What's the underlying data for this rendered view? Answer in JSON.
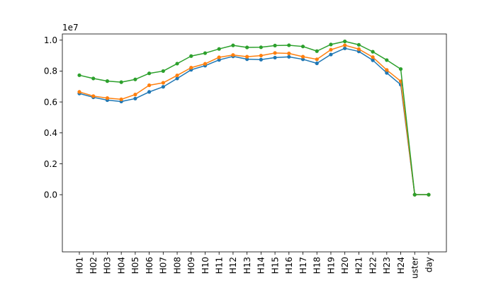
{
  "chart_data": {
    "type": "line",
    "title": "",
    "xlabel": "",
    "ylabel": "",
    "y_offset_text": "1e7",
    "y_scale_factor": 10000000,
    "ylim": [
      -3.7,
      10.4
    ],
    "yticks": [
      0.0,
      0.2,
      0.4,
      0.6,
      0.8,
      1.0
    ],
    "ytick_labels": [
      "0.0",
      "0.2",
      "0.4",
      "0.6",
      "0.8",
      "1.0"
    ],
    "categories": [
      "H01",
      "H02",
      "H03",
      "H04",
      "H05",
      "H06",
      "H07",
      "H08",
      "H09",
      "H10",
      "H11",
      "H12",
      "H13",
      "H14",
      "H15",
      "H16",
      "H17",
      "H18",
      "H19",
      "H20",
      "H21",
      "H22",
      "H23",
      "H24",
      "uster",
      "day"
    ],
    "grid": false,
    "legend": "none",
    "series": [
      {
        "color": "#1f77b4",
        "values": [
          6.55,
          6.3,
          6.12,
          6.03,
          6.22,
          6.65,
          6.98,
          7.52,
          8.08,
          8.35,
          8.72,
          8.95,
          8.77,
          8.74,
          8.87,
          8.92,
          8.76,
          8.5,
          9.07,
          9.47,
          9.27,
          8.7,
          7.88,
          7.12,
          0.0,
          0.0
        ]
      },
      {
        "color": "#ff7f0e",
        "values": [
          6.65,
          6.38,
          6.25,
          6.17,
          6.48,
          7.08,
          7.24,
          7.72,
          8.22,
          8.47,
          8.89,
          9.04,
          8.93,
          9.0,
          9.17,
          9.14,
          8.93,
          8.76,
          9.38,
          9.67,
          9.42,
          8.9,
          8.07,
          7.34,
          0.0,
          0.0
        ]
      },
      {
        "color": "#2ca02c",
        "values": [
          7.73,
          7.52,
          7.35,
          7.28,
          7.46,
          7.85,
          8.0,
          8.48,
          8.97,
          9.16,
          9.43,
          9.66,
          9.53,
          9.54,
          9.65,
          9.67,
          9.59,
          9.29,
          9.72,
          9.92,
          9.7,
          9.25,
          8.71,
          8.13,
          0.0,
          0.0
        ]
      }
    ]
  }
}
